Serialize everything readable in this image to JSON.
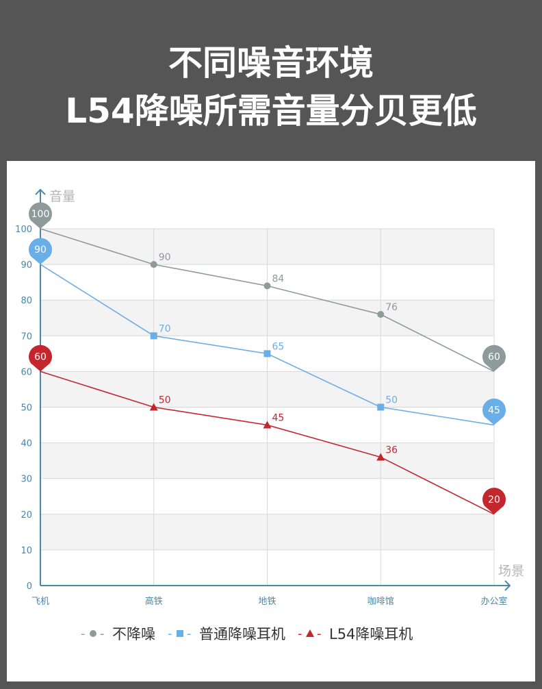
{
  "header": {
    "line1": "不同噪音环境",
    "line2": "L54降噪所需音量分贝更低"
  },
  "chart_data": {
    "type": "line",
    "ylabel": "音量",
    "xlabel": "场景",
    "categories": [
      "飞机",
      "高铁",
      "地铁",
      "咖啡馆",
      "办公室"
    ],
    "ylim": [
      0,
      100
    ],
    "yticks": [
      0,
      10,
      20,
      30,
      40,
      50,
      60,
      70,
      80,
      90,
      100
    ],
    "grid": true,
    "legend_position": "bottom",
    "series": [
      {
        "name": "不降噪",
        "values": [
          100,
          90,
          84,
          76,
          60
        ],
        "color": "#8e9a9b",
        "marker": "circle"
      },
      {
        "name": "普通降噪耳机",
        "values": [
          90,
          70,
          65,
          50,
          45
        ],
        "color": "#6aaee8",
        "marker": "square"
      },
      {
        "name": "L54降噪耳机",
        "values": [
          60,
          50,
          45,
          36,
          20
        ],
        "color": "#c4262e",
        "marker": "triangle"
      }
    ]
  }
}
